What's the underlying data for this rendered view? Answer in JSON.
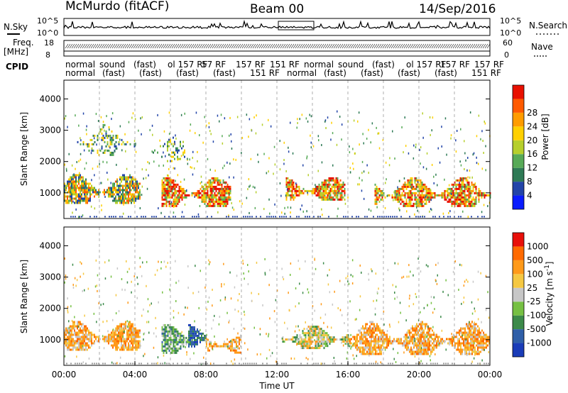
{
  "header": {
    "station": "McMurdo (fitACF)",
    "beam": "Beam 00",
    "date": "14/Sep/2016"
  },
  "panel_labels": {
    "nsky": "N.Sky",
    "nsearch": "N.Search",
    "freq": "Freq.",
    "freq_unit": "[MHz]",
    "nave": "Nave",
    "cpid": "CPID",
    "nsky_ticks": [
      "10^5",
      "10^0"
    ],
    "nsearch_ticks": [
      "10^5",
      "10^0"
    ],
    "freq_ticks": [
      "18",
      "8"
    ],
    "nave_ticks": [
      "60",
      "0"
    ]
  },
  "cpid_rows": {
    "row1": [
      "normal",
      "sound",
      "(fast)",
      "ol 157 RF",
      "57 RF",
      "157 RF",
      "151 RF",
      "normal",
      "sound",
      "(fast)",
      "ol 157 RF",
      "157 RF",
      "157 RF"
    ],
    "row2": [
      "normal",
      "(fast)",
      "(fast)",
      "(fast)",
      "(fast)",
      "151 RF",
      "normal",
      "(fast)",
      "(fast)",
      "(fast)",
      "(fast)",
      "151 RF"
    ]
  },
  "chart_data": [
    {
      "type": "heatmap",
      "name": "power",
      "ylabel": "Slant Range [km]",
      "xlabel": "Time UT",
      "x_ticks": [
        "00:00",
        "04:00",
        "08:00",
        "12:00",
        "16:00",
        "20:00",
        "00:00"
      ],
      "y_ticks": [
        1000,
        2000,
        3000,
        4000
      ],
      "xlim": [
        0,
        24
      ],
      "ylim": [
        180,
        4600
      ],
      "colorbar": {
        "label": "Power [dB]",
        "ticks": [
          "4",
          "8",
          "12",
          "16",
          "20",
          "24",
          "28"
        ],
        "colors": [
          "#0a1cff",
          "#2244a8",
          "#2e7a55",
          "#57aa57",
          "#b6cf2c",
          "#ffd000",
          "#ff9c00",
          "#ff5a00",
          "#e81000"
        ]
      },
      "echo_regions": [
        {
          "t0": 0.0,
          "t1": 4.3,
          "r0": 650,
          "r1": 1800,
          "level": "medium"
        },
        {
          "t0": 5.5,
          "t1": 9.4,
          "r0": 600,
          "r1": 1700,
          "level": "high"
        },
        {
          "t0": 12.5,
          "t1": 15.8,
          "r0": 750,
          "r1": 1700,
          "level": "high"
        },
        {
          "t0": 17.5,
          "t1": 24.0,
          "r0": 550,
          "r1": 1700,
          "level": "high"
        },
        {
          "t0": 0.5,
          "t1": 4.0,
          "r0": 2200,
          "r1": 3400,
          "level": "low"
        },
        {
          "t0": 5.0,
          "t1": 6.8,
          "r0": 2000,
          "r1": 3000,
          "level": "low"
        }
      ]
    },
    {
      "type": "heatmap",
      "name": "velocity",
      "ylabel": "Slant Range [km]",
      "xlabel": "Time UT",
      "x_ticks": [
        "00:00",
        "04:00",
        "08:00",
        "12:00",
        "16:00",
        "20:00",
        "00:00"
      ],
      "y_ticks": [
        1000,
        2000,
        3000,
        4000
      ],
      "xlim": [
        0,
        24
      ],
      "ylim": [
        180,
        4600
      ],
      "colorbar": {
        "label": "Velocity [m s^-1]",
        "ticks": [
          "1000",
          "500",
          "100",
          "25",
          "-25",
          "-100",
          "-500",
          "-1000"
        ],
        "colors": [
          "#1a3cb8",
          "#2f5fa8",
          "#3c8a4a",
          "#76c043",
          "#c7c7c7",
          "#f5c842",
          "#ff9a1a",
          "#ff6a00",
          "#e8100a"
        ]
      },
      "echo_regions": [
        {
          "t0": 0.0,
          "t1": 4.3,
          "r0": 650,
          "r1": 1800,
          "level": "orange"
        },
        {
          "t0": 5.5,
          "t1": 7.4,
          "r0": 600,
          "r1": 1700,
          "level": "green"
        },
        {
          "t0": 7.0,
          "t1": 8.0,
          "r0": 800,
          "r1": 1700,
          "level": "blue"
        },
        {
          "t0": 8.0,
          "t1": 10.0,
          "r0": 600,
          "r1": 1300,
          "level": "orange"
        },
        {
          "t0": 12.3,
          "t1": 16.0,
          "r0": 700,
          "r1": 1650,
          "level": "mixed"
        },
        {
          "t0": 16.0,
          "t1": 24.0,
          "r0": 550,
          "r1": 1800,
          "level": "orange"
        }
      ]
    }
  ]
}
